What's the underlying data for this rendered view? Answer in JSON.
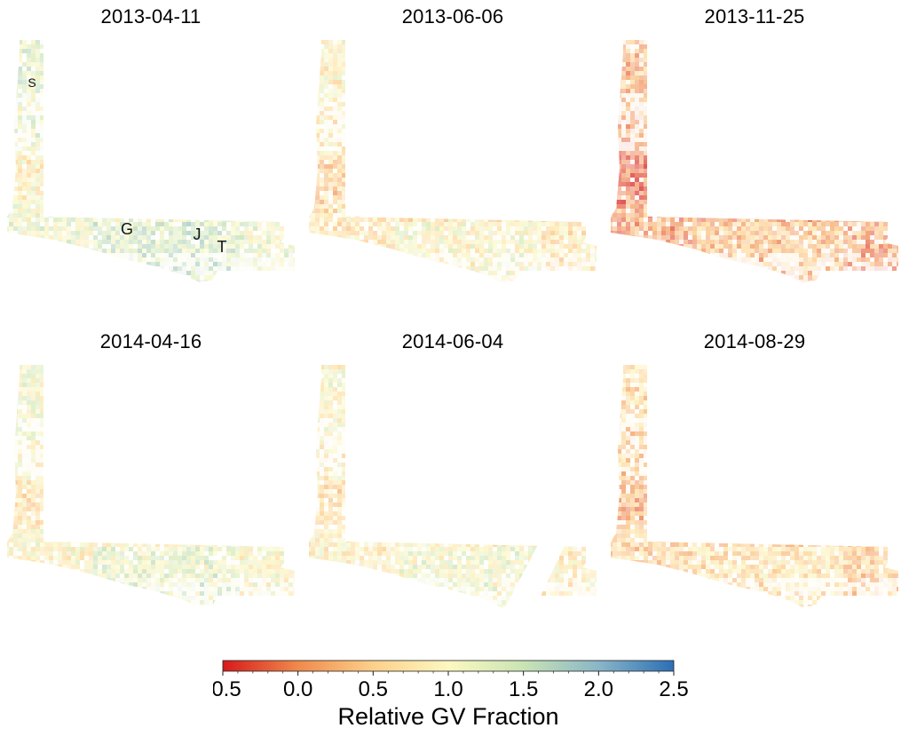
{
  "figure": {
    "panels": [
      {
        "date": "2013-04-11",
        "gv_mean": 1.15,
        "labels": [
          "S",
          "G",
          "J",
          "T"
        ],
        "gap": false
      },
      {
        "date": "2013-06-06",
        "gv_mean": 0.75,
        "labels": [],
        "gap": false
      },
      {
        "date": "2013-11-25",
        "gv_mean": 0.1,
        "labels": [],
        "gap": false
      },
      {
        "date": "2014-04-16",
        "gv_mean": 0.95,
        "labels": [],
        "gap": false
      },
      {
        "date": "2014-06-04",
        "gv_mean": 0.85,
        "labels": [],
        "gap": true
      },
      {
        "date": "2014-08-29",
        "gv_mean": 0.45,
        "labels": [],
        "gap": false
      }
    ]
  },
  "colorbar": {
    "title": "Relative GV Fraction",
    "min": -0.5,
    "max": 2.5,
    "ticks": [
      "-0.5",
      "0.0",
      "0.5",
      "1.0",
      "1.5",
      "2.0",
      "2.5"
    ],
    "colors": [
      "#d7191c",
      "#f08a4b",
      "#fdd08a",
      "#fcf8c0",
      "#c9e4b4",
      "#89b6c8",
      "#2c6fb6"
    ]
  }
}
